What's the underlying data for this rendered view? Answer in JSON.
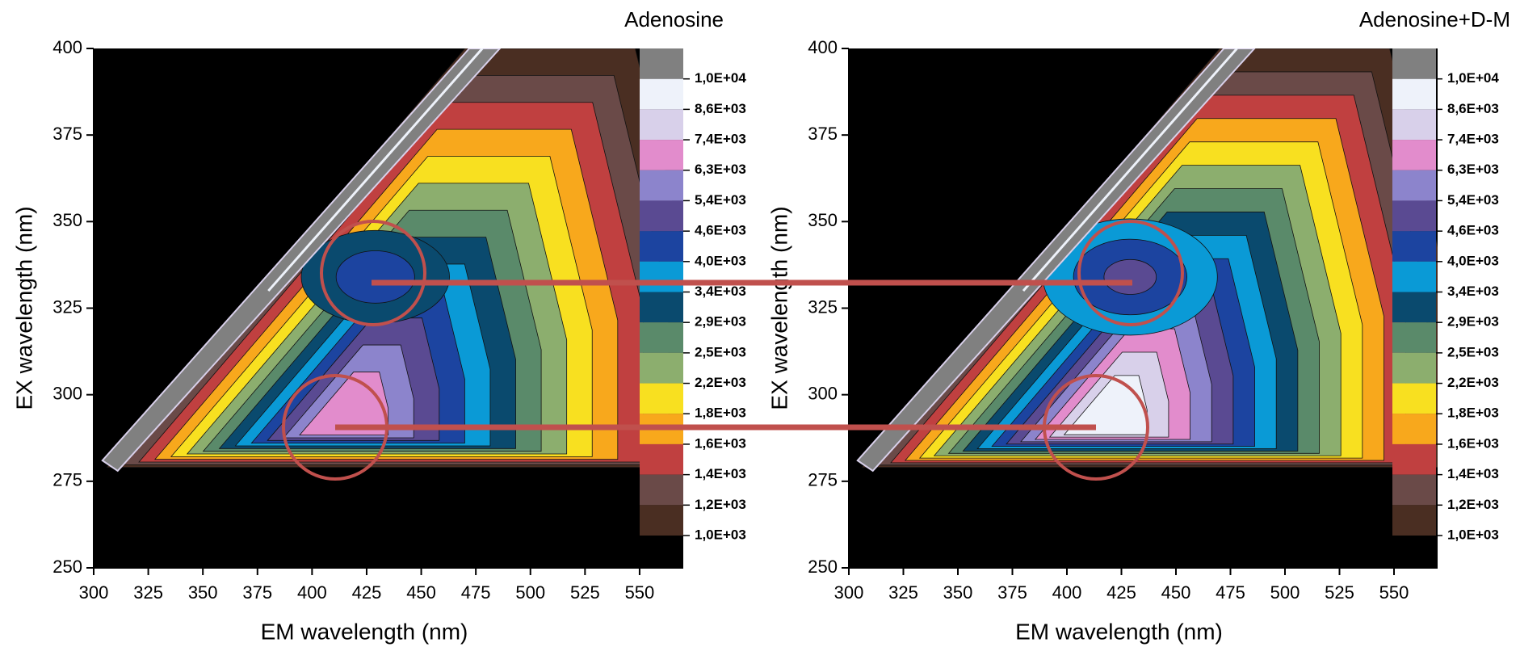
{
  "chart_data": [
    {
      "type": "contour",
      "title": "Adenosine",
      "xlabel": "EM wavelength (nm)",
      "ylabel": "EX wavelength (nm)",
      "xlim": [
        300,
        570
      ],
      "ylim": [
        250,
        400
      ],
      "xticks": [
        300,
        325,
        350,
        375,
        400,
        425,
        450,
        475,
        500,
        525,
        550
      ],
      "yticks": [
        250,
        275,
        300,
        325,
        350,
        375,
        400
      ],
      "colorbar": {
        "ticks": [
          {
            "value": 10000,
            "label": "1,0E+04"
          },
          {
            "value": 8600,
            "label": "8,6E+03"
          },
          {
            "value": 7400,
            "label": "7,4E+03"
          },
          {
            "value": 6300,
            "label": "6,3E+03"
          },
          {
            "value": 5400,
            "label": "5,4E+03"
          },
          {
            "value": 4600,
            "label": "4,6E+03"
          },
          {
            "value": 4000,
            "label": "4,0E+03"
          },
          {
            "value": 3400,
            "label": "3,4E+03"
          },
          {
            "value": 2900,
            "label": "2,9E+03"
          },
          {
            "value": 2500,
            "label": "2,5E+03"
          },
          {
            "value": 2200,
            "label": "2,2E+03"
          },
          {
            "value": 1800,
            "label": "1,8E+03"
          },
          {
            "value": 1600,
            "label": "1,6E+03"
          },
          {
            "value": 1400,
            "label": "1,4E+03"
          },
          {
            "value": 1200,
            "label": "1,2E+03"
          },
          {
            "value": 1000,
            "label": "1,0E+03"
          }
        ],
        "colors": [
          "#808080",
          "#eef2fa",
          "#d8d0ea",
          "#e28ccc",
          "#8c84cc",
          "#5a4a92",
          "#1c44a0",
          "#0a9ad6",
          "#0a4a6e",
          "#5a8a6a",
          "#8cae6e",
          "#f8e020",
          "#f8a81c",
          "#c04040",
          "#6a4a48",
          "#4a2e22"
        ]
      }
    },
    {
      "type": "contour",
      "title": "Adenosine+D-M",
      "xlabel": "EM wavelength (nm)",
      "ylabel": "EX wavelength (nm)",
      "xlim": [
        300,
        570
      ],
      "ylim": [
        250,
        400
      ],
      "xticks": [
        300,
        325,
        350,
        375,
        400,
        425,
        450,
        475,
        500,
        525,
        550
      ],
      "yticks": [
        250,
        275,
        300,
        325,
        350,
        375,
        400
      ],
      "colorbar": {
        "ticks": [
          {
            "value": 10000,
            "label": "1,0E+04"
          },
          {
            "value": 8600,
            "label": "8,6E+03"
          },
          {
            "value": 7400,
            "label": "7,4E+03"
          },
          {
            "value": 6300,
            "label": "6,3E+03"
          },
          {
            "value": 5400,
            "label": "5,4E+03"
          },
          {
            "value": 4600,
            "label": "4,6E+03"
          },
          {
            "value": 4000,
            "label": "4,0E+03"
          },
          {
            "value": 3400,
            "label": "3,4E+03"
          },
          {
            "value": 2900,
            "label": "2,9E+03"
          },
          {
            "value": 2500,
            "label": "2,5E+03"
          },
          {
            "value": 2200,
            "label": "2,2E+03"
          },
          {
            "value": 1800,
            "label": "1,8E+03"
          },
          {
            "value": 1600,
            "label": "1,6E+03"
          },
          {
            "value": 1400,
            "label": "1,4E+03"
          },
          {
            "value": 1200,
            "label": "1,2E+03"
          },
          {
            "value": 1000,
            "label": "1,0E+03"
          }
        ],
        "colors": [
          "#808080",
          "#eef2fa",
          "#d8d0ea",
          "#e28ccc",
          "#8c84cc",
          "#5a4a92",
          "#1c44a0",
          "#0a9ad6",
          "#0a4a6e",
          "#5a8a6a",
          "#8cae6e",
          "#f8e020",
          "#f8a81c",
          "#c04040",
          "#6a4a48",
          "#4a2e22"
        ]
      }
    }
  ]
}
